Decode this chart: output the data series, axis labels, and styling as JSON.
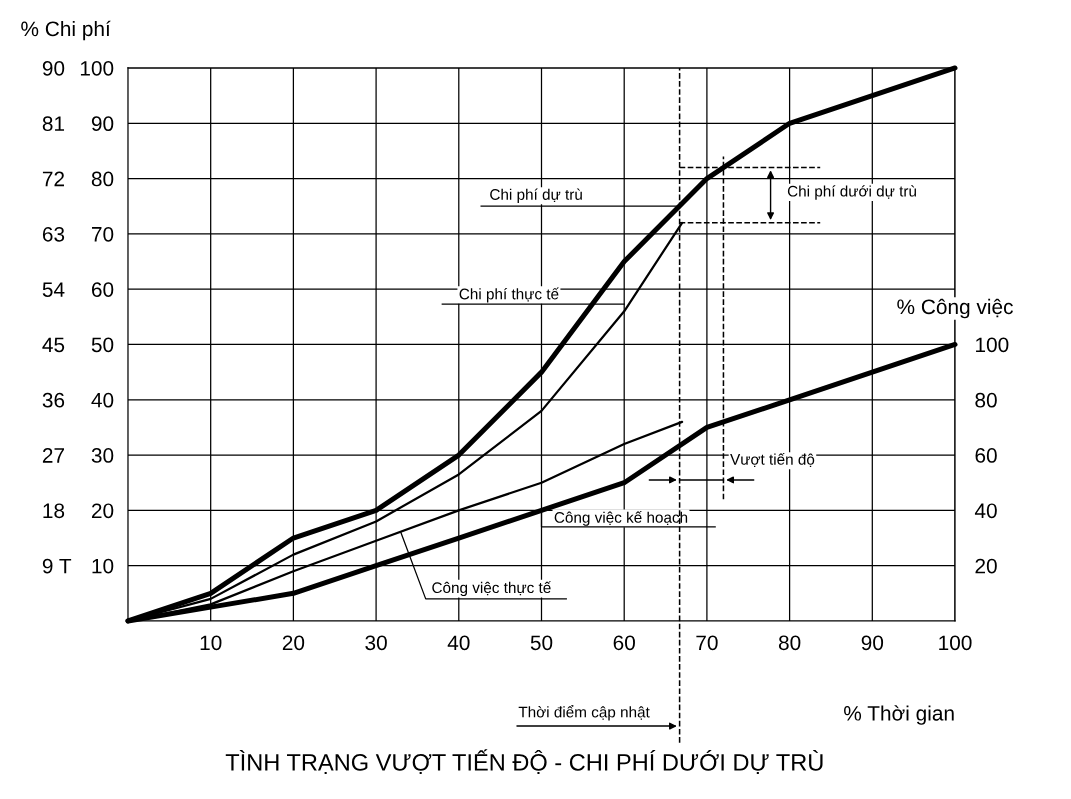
{
  "chart_data": {
    "type": "line",
    "title": "TÌNH TRẠNG VƯỢT TIẾN ĐỘ - CHI PHÍ DƯỚI DỰ TRÙ",
    "xlabel": "% Thời gian",
    "ylabel": "% Chi phí",
    "y2label": "% Công việc",
    "xlim": [
      0,
      100
    ],
    "xticks": [
      10,
      20,
      30,
      40,
      50,
      60,
      70,
      80,
      90,
      100
    ],
    "ylim": [
      0,
      100
    ],
    "yticks": [
      10,
      20,
      30,
      40,
      50,
      60,
      70,
      80,
      90,
      100
    ],
    "y2lim": [
      0,
      200
    ],
    "y2ticks": [
      20,
      40,
      60,
      80,
      100
    ],
    "y3lim": [
      0,
      90
    ],
    "y3ticks": [
      {
        "value": 9,
        "label": "9 T"
      },
      18,
      27,
      36,
      45,
      54,
      63,
      72,
      81,
      90
    ],
    "grid": true,
    "marker": "none",
    "line_style": "solid",
    "series": [
      {
        "color": "#000000",
        "x": [
          0,
          10,
          20,
          30,
          40,
          50,
          60,
          70,
          80,
          100
        ],
        "values": [
          0,
          5,
          15,
          20,
          30,
          45,
          65,
          80,
          90,
          100
        ]
      },
      {
        "color": "#000000",
        "x": [
          0,
          10,
          20,
          30,
          40,
          50,
          60,
          67
        ],
        "values": [
          0,
          4,
          12,
          18,
          26.5,
          38,
          56,
          72
        ]
      },
      {
        "color": "#000000",
        "axis": "y2",
        "x": [
          0,
          10,
          20,
          30,
          40,
          50,
          60,
          70,
          80,
          100
        ],
        "values": [
          0,
          5,
          10,
          20,
          30,
          40,
          50,
          70,
          80,
          100
        ]
      },
      {
        "color": "#000000",
        "axis": "y2",
        "x": [
          0,
          10,
          20,
          30,
          40,
          50,
          60,
          67
        ],
        "values": [
          0,
          6,
          18,
          29,
          40,
          50,
          64,
          72
        ]
      }
    ],
    "ref_lines": [
      {
        "axis": "x",
        "value": 66.7,
        "label": "Thời điểm cập nhật",
        "line_style": "dashed"
      },
      {
        "axis": "x",
        "value": 72,
        "line_style": "dashed"
      },
      {
        "axis": "y",
        "value": 82,
        "line_style": "dashed"
      },
      {
        "axis": "y",
        "value": 72,
        "line_style": "dashed"
      }
    ],
    "annotations": [
      {
        "text": "Chi phí dự trù",
        "x": 66.7,
        "y": 75
      },
      {
        "text": "Chi phí thực tế",
        "x": 60,
        "y": 56
      },
      {
        "text": "Công việc kế hoạch",
        "x": 50,
        "y": 20
      },
      {
        "text": "Công việc thực tế",
        "x": 33,
        "y": 16
      },
      "Chi phí dưới dự trù",
      {
        "text": "Vượt tiến độ",
        "x": 72,
        "y": 25.5
      }
    ]
  }
}
